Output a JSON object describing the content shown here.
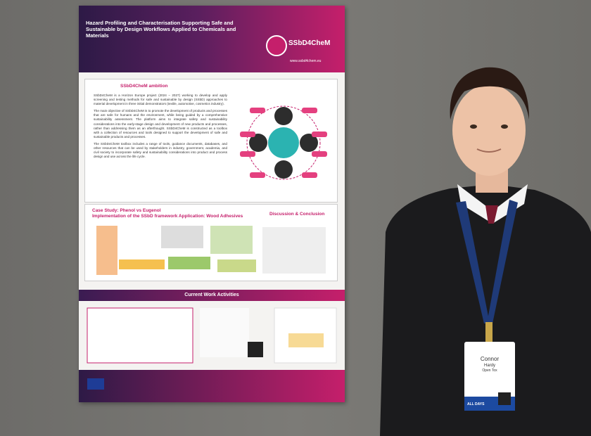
{
  "poster": {
    "title": "Hazard Profiling and Characterisation Supporting Safe and Sustainable by Design Workflows Applied to Chemicals and Materials",
    "logo": "SSbD4CheM",
    "website": "www.ssbd4chem.eu",
    "ambition": {
      "heading": "SSbD4CheM ambition",
      "paragraphs": [
        "SSbD4CheM is a Horizon Europe project (2024 – 2027) working to develop and apply screening and testing methods for safe and sustainable by design (SSbD) approaches to material development in three initial demonstrators (textile, automotive, cosmetics industry).",
        "The main objective of SSbD4CheM is to promote the development of products and processes that are safe for humans and the environment, while being guided by a comprehensive sustainability assessment. The platform aims to integrate safety and sustainability considerations into the early-stage design and development of new products and processes, rather than addressing them as an afterthought. SSbD4CheM is constructed as a toolbox with a collection of resources and tools designed to support the development of safe and sustainable products and processes.",
        "The SSbD4CheM toolbox includes a range of tools, guidance documents, databases, and other resources that can be used by stakeholders in industry, government, academia, and civil society to incorporate safety and sustainability considerations into product and process design and use across the life cycle."
      ]
    },
    "case_study": {
      "heading": "Case Study: Phenol vs Eugenol",
      "subheading": "Implementation of the SSbD framework Application: Wood Adhesives"
    },
    "discussion_heading": "Discussion & Conclusion",
    "current_work_heading": "Current Work Activities"
  },
  "badge": {
    "first_name": "Connor",
    "last_name": "Hardy",
    "organization": "Open Tox",
    "days": "ALL DAYS"
  }
}
